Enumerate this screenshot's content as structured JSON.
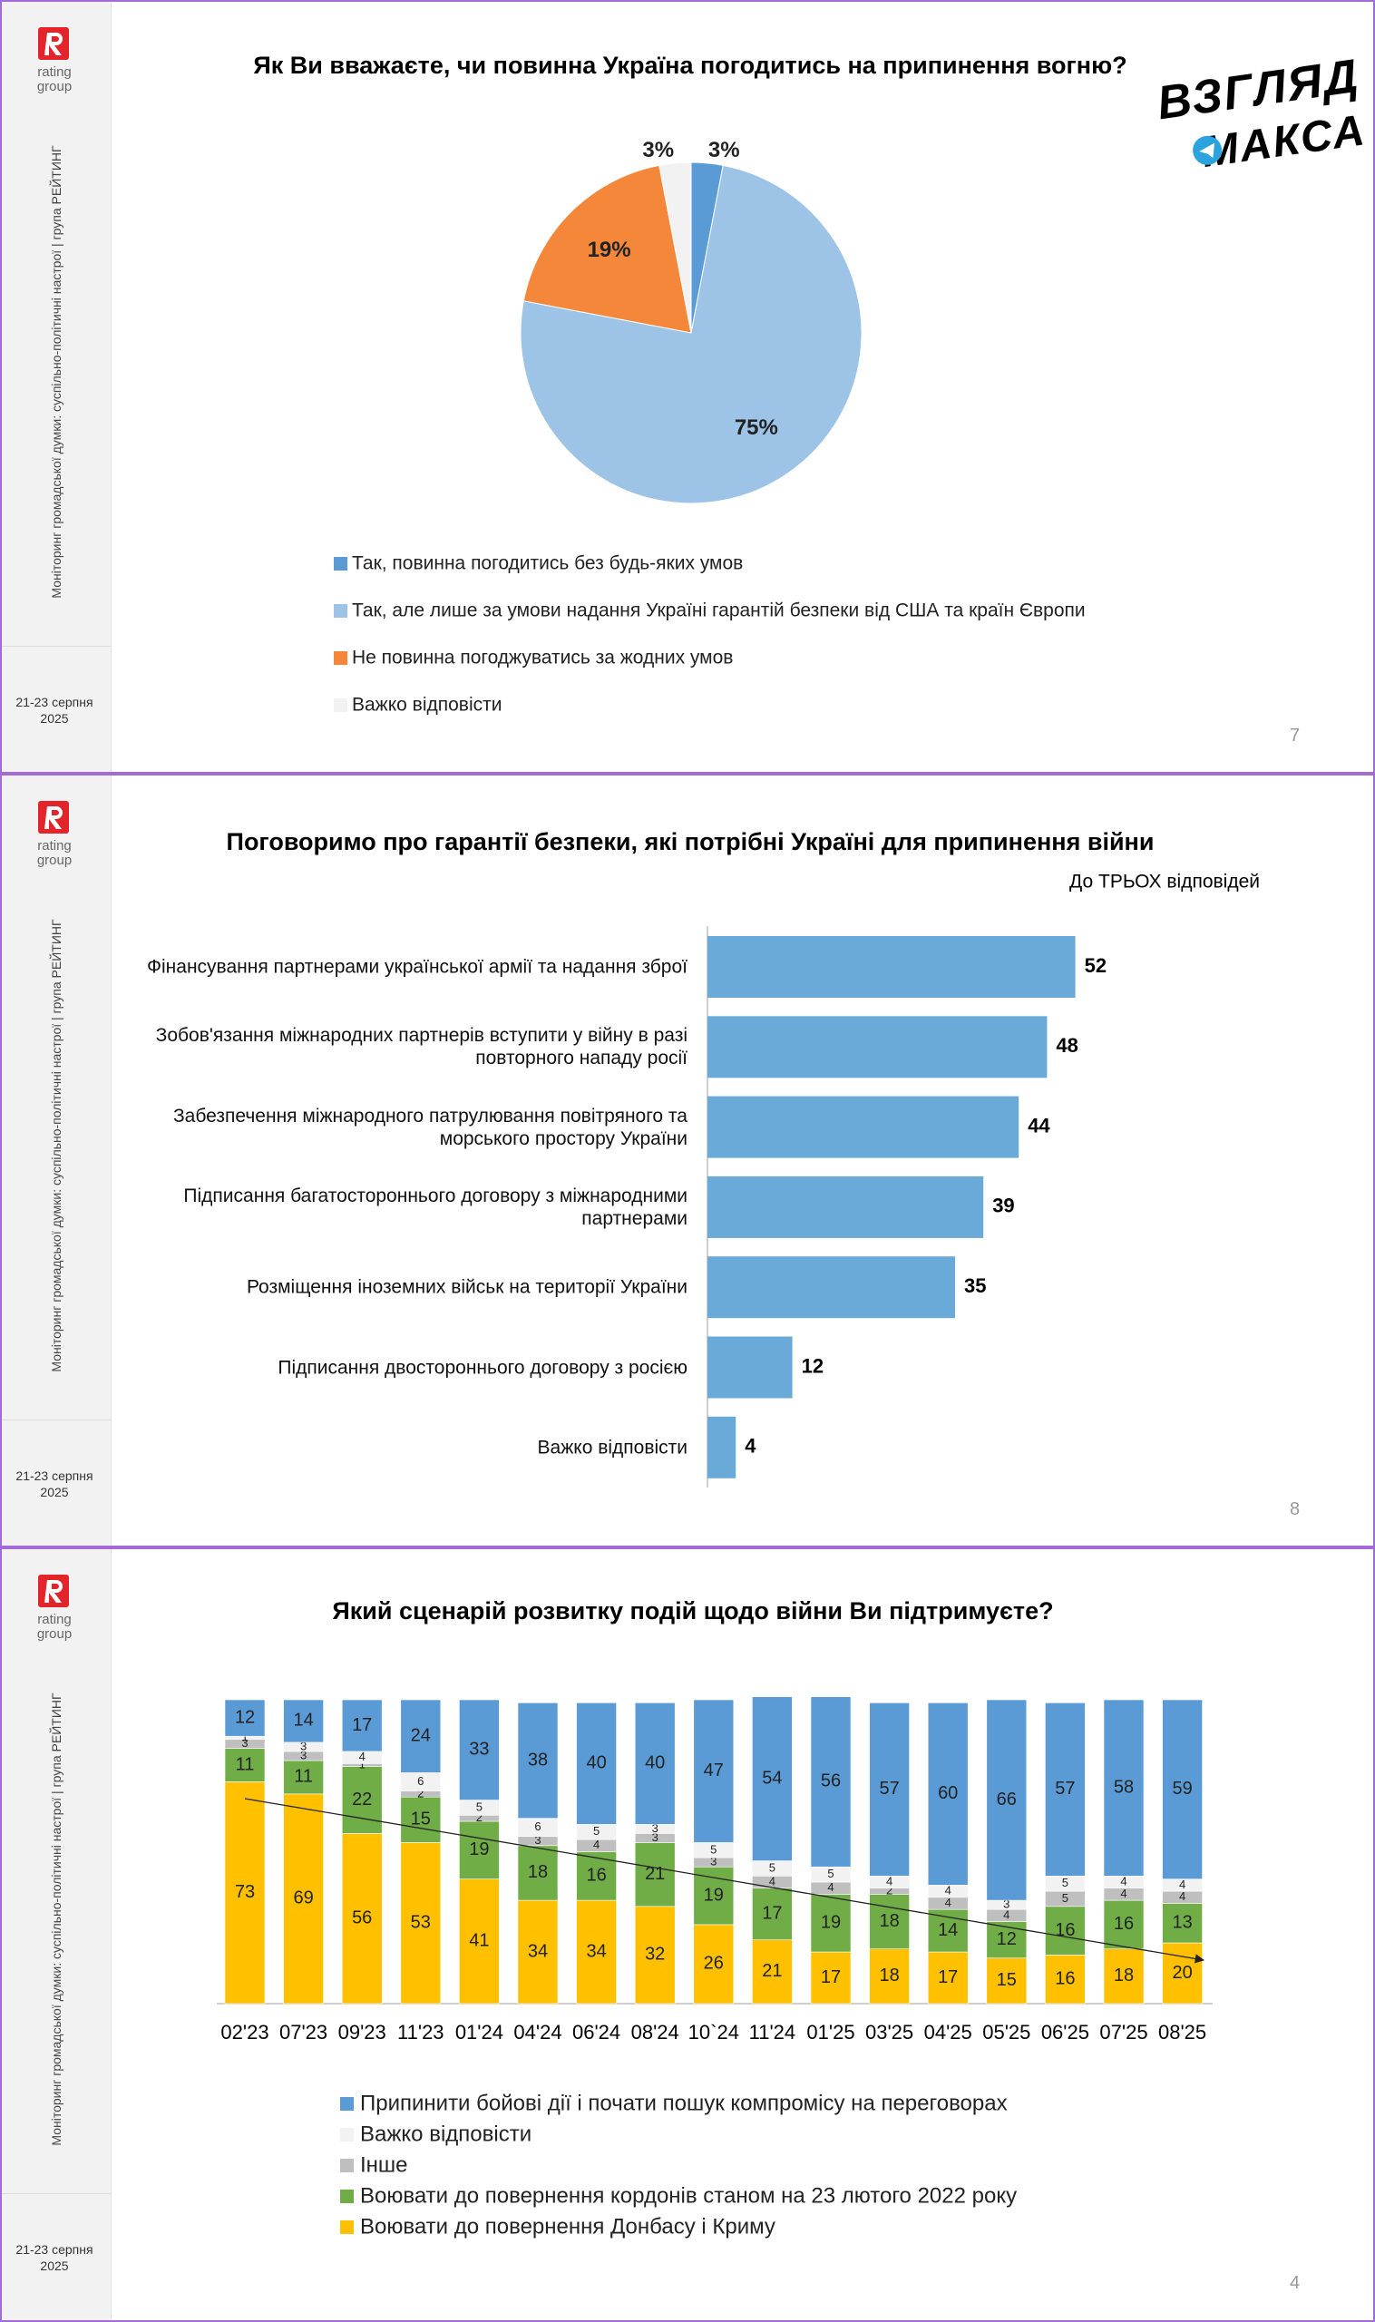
{
  "sidebar": {
    "logo": [
      "rating",
      "group"
    ],
    "caption": "Моніторинг громадської думки: суспільно-політичні настрої | група РЕЙТИНГ",
    "date": [
      "21-23 серпня",
      "2025"
    ]
  },
  "brand": [
    "ВЗГЛЯД",
    "МАКСА"
  ],
  "page_numbers": [
    7,
    8,
    4
  ],
  "chart_data": [
    {
      "type": "pie",
      "title": "Як Ви вважаєте, чи повинна Україна погодитись на припинення вогню?",
      "categories": [
        "Так, повинна погодитись без будь-яких умов",
        "Так, але лише за умови надання Україні гарантій безпеки від США та країн Європи",
        "Не повинна погоджуватись за жодних умов",
        "Важко відповісти"
      ],
      "values": [
        3,
        75,
        19,
        3
      ],
      "value_labels": [
        "3%",
        "75%",
        "19%",
        "3%"
      ],
      "colors": [
        "#5b9bd5",
        "#9dc3e6",
        "#f4873a",
        "#f2f2f2"
      ],
      "legend": "bottom"
    },
    {
      "type": "hbar",
      "title": "Поговоримо про гарантії безпеки, які потрібні Україні для припинення війни",
      "subtitle": "До ТРЬОХ відповідей",
      "categories": [
        "Фінансування партнерами української армії та надання зброї",
        "Зобов'язання міжнародних партнерів вступити у війну в разі повторного нападу росії",
        "Забезпечення міжнародного патрулювання повітряного та морського простору України",
        "Підписання багатостороннього договору з міжнародними партнерами",
        "Розміщення іноземних військ на території України",
        "Підписання двостороннього договору з росією",
        "Важко відповісти"
      ],
      "values": [
        52,
        48,
        44,
        39,
        35,
        12,
        4
      ],
      "color": "#6aaad8"
    },
    {
      "type": "stacked_bar",
      "title": "Який сценарій розвитку подій щодо війни Ви підтримуєте?",
      "categories": [
        "02'23",
        "07'23",
        "09'23",
        "11'23",
        "01'24",
        "04'24",
        "06'24",
        "08'24",
        "10`24",
        "11'24",
        "01'25",
        "03'25",
        "04'25",
        "05'25",
        "06'25",
        "07'25",
        "08'25"
      ],
      "series": [
        {
          "name": "Припинити бойові дії і почати пошук компромісу на переговорах",
          "color": "#5b9bd5",
          "values": [
            12,
            14,
            17,
            24,
            33,
            38,
            40,
            40,
            47,
            54,
            56,
            57,
            60,
            66,
            57,
            58,
            59
          ]
        },
        {
          "name": "Важко відповісти",
          "color": "#f2f2f2",
          "values": [
            1,
            3,
            4,
            6,
            5,
            6,
            5,
            3,
            5,
            5,
            5,
            4,
            4,
            3,
            5,
            4,
            4
          ]
        },
        {
          "name": "Інше",
          "color": "#bfbfbf",
          "values": [
            3,
            3,
            1,
            2,
            2,
            3,
            4,
            3,
            3,
            4,
            4,
            2,
            4,
            4,
            5,
            4,
            4
          ]
        },
        {
          "name": "Воювати до повернення кордонів станом на 23 лютого 2022 року",
          "color": "#70ad47",
          "values": [
            11,
            11,
            22,
            15,
            19,
            18,
            16,
            21,
            19,
            17,
            19,
            18,
            14,
            12,
            16,
            16,
            13
          ]
        },
        {
          "name": "Воювати до повернення Донбасу і Криму",
          "color": "#ffc000",
          "values": [
            73,
            69,
            56,
            53,
            41,
            34,
            34,
            32,
            26,
            21,
            17,
            18,
            17,
            15,
            16,
            18,
            20
          ]
        }
      ],
      "legend": "bottom"
    }
  ]
}
